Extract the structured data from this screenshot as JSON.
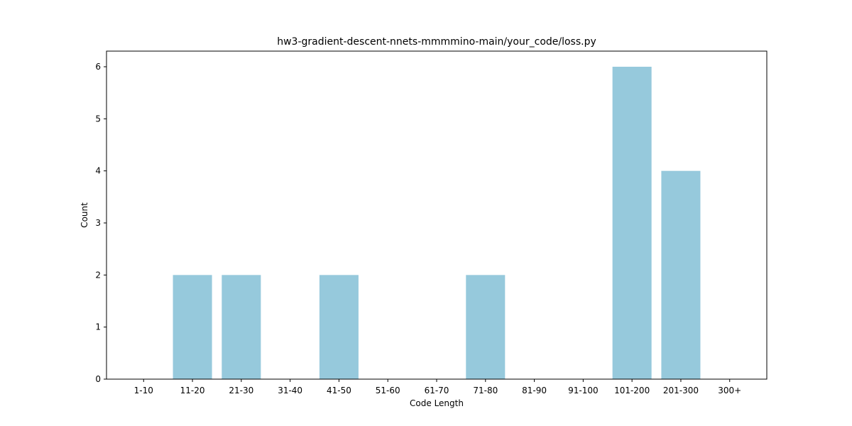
{
  "chart_data": {
    "type": "bar",
    "title": "hw3-gradient-descent-nnets-mmmmino-main/your_code/loss.py",
    "xlabel": "Code Length",
    "ylabel": "Count",
    "categories": [
      "1-10",
      "11-20",
      "21-30",
      "31-40",
      "41-50",
      "51-60",
      "61-70",
      "71-80",
      "81-90",
      "91-100",
      "101-200",
      "201-300",
      "300+"
    ],
    "values": [
      0,
      2,
      2,
      0,
      2,
      0,
      0,
      2,
      0,
      0,
      6,
      4,
      0
    ],
    "ylim": [
      0,
      6.3
    ],
    "yticks": [
      0,
      1,
      2,
      3,
      4,
      5,
      6
    ],
    "bar_color": "#96c9dc",
    "grid": false,
    "legend": "none"
  }
}
